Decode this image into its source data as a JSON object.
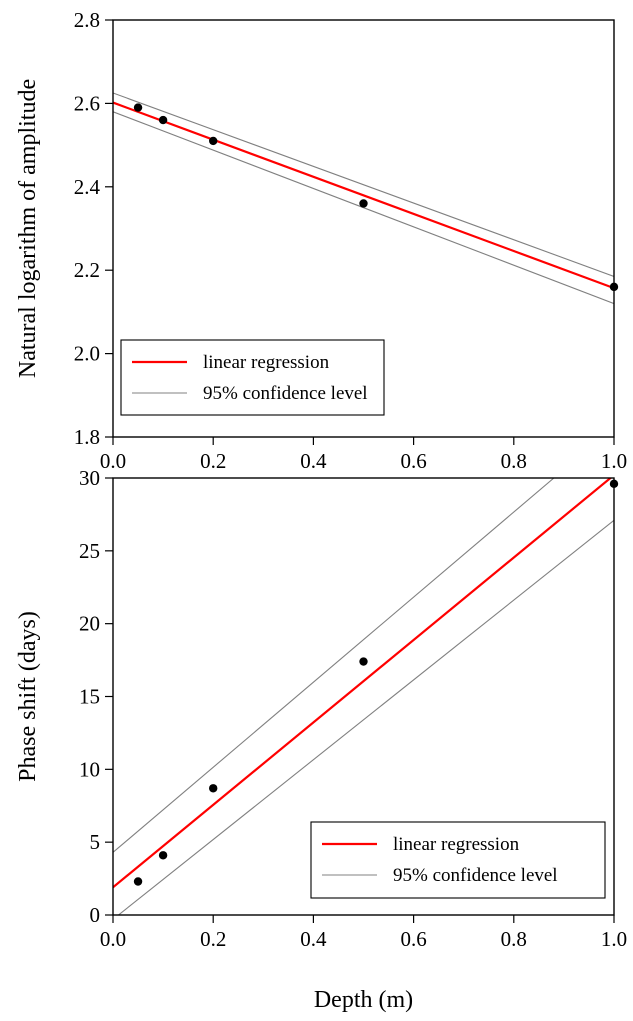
{
  "chart_data": [
    {
      "type": "scatter",
      "title": "",
      "xlabel": "",
      "ylabel": "Natural logarithm of amplitude",
      "xlim": [
        0.0,
        1.0
      ],
      "ylim": [
        1.8,
        2.8
      ],
      "x_ticks": [
        "0.0",
        "0.2",
        "0.4",
        "0.6",
        "0.8",
        "1.0"
      ],
      "y_ticks": [
        "1.8",
        "2.0",
        "2.2",
        "2.4",
        "2.6",
        "2.8"
      ],
      "points": {
        "x": [
          0.05,
          0.1,
          0.2,
          0.5,
          1.0
        ],
        "y": [
          2.59,
          2.56,
          2.51,
          2.36,
          2.16
        ]
      },
      "regression": {
        "intercept": 2.602,
        "slope": -0.445
      },
      "confidence_band": {
        "upper": [
          [
            0.0,
            2.625
          ],
          [
            1.0,
            2.185
          ]
        ],
        "lower": [
          [
            0.0,
            2.58
          ],
          [
            1.0,
            2.12
          ]
        ]
      },
      "legend": {
        "position": "bottom-left",
        "entries": [
          {
            "label": "linear regression",
            "color": "#ff0000"
          },
          {
            "label": "95% confidence level",
            "color": "#808080"
          }
        ]
      },
      "grid": false
    },
    {
      "type": "scatter",
      "title": "",
      "xlabel": "Depth (m)",
      "ylabel": "Phase shift (days)",
      "xlim": [
        0.0,
        1.0
      ],
      "ylim": [
        0,
        30
      ],
      "x_ticks": [
        "0.0",
        "0.2",
        "0.4",
        "0.6",
        "0.8",
        "1.0"
      ],
      "y_ticks": [
        "0",
        "5",
        "10",
        "15",
        "20",
        "25",
        "30"
      ],
      "points": {
        "x": [
          0.05,
          0.1,
          0.2,
          0.5,
          1.0
        ],
        "y": [
          2.3,
          4.1,
          8.7,
          17.4,
          29.6
        ]
      },
      "regression": {
        "intercept": 1.9,
        "slope": 28.3
      },
      "confidence_band": {
        "upper": [
          [
            0.0,
            4.3
          ],
          [
            0.88,
            30.0
          ]
        ],
        "lower": [
          [
            0.0,
            -0.3
          ],
          [
            1.0,
            27.1
          ]
        ]
      },
      "legend": {
        "position": "bottom-right",
        "entries": [
          {
            "label": "linear regression",
            "color": "#ff0000"
          },
          {
            "label": "95% confidence level",
            "color": "#808080"
          }
        ]
      },
      "grid": false
    }
  ]
}
